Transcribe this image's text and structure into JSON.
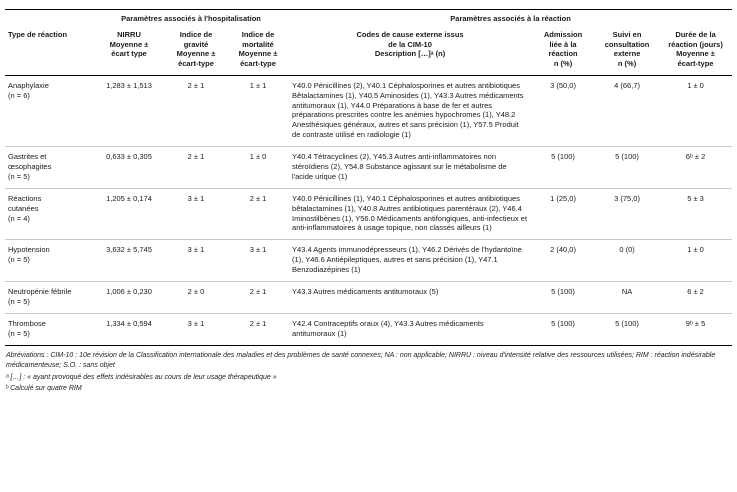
{
  "table": {
    "group_headers": [
      "Paramètres associés à l'hospitalisation",
      "Paramètres associés à la réaction"
    ],
    "columns": [
      "Type de réaction",
      "NIRRU\nMoyenne ±\nécart type",
      "Indice de\ngravité\nMoyenne ±\nécart-type",
      "Indice de\nmortalité\nMoyenne ±\nécart-type",
      "Codes de cause externe issus\nde la CIM-10\nDescription […]ᵃ (n)",
      "Admission\nliée à la\nréaction\nn (%)",
      "Suivi en\nconsultation\nexterne\nn (%)",
      "Durée de la\nréaction (jours)\nMoyenne ±\nécart-type"
    ],
    "rows": [
      {
        "type": "Anaphylaxie\n(n = 6)",
        "nirru": "1,283 ± 1,513",
        "gravite": "2 ± 1",
        "mortalite": "1 ± 1",
        "codes": "Y40.0 Pénicillines (2), Y40.1 Céphalosporines et autres antibiotiques Bêtalactamines (1), Y40.5 Aminosides (1), Y43.3 Autres médicaments antitumoraux (1), Y44.0 Préparations à base de fer et autres préparations prescrites contre les anémies hypochromes (1), Y48.2 Anesthésiques généraux, autres et sans précision (1), Y57.5 Produit de contraste utilisé en radiologie (1)",
        "admission": "3 (50,0)",
        "suivi": "4 (66,7)",
        "duree": "1 ± 0"
      },
      {
        "type": "Gastrites et\nœsophagites\n(n = 5)",
        "nirru": "0,633 ± 0,305",
        "gravite": "2 ± 1",
        "mortalite": "1 ± 0",
        "codes": "Y40.4 Tétracyclines (2), Y45.3 Autres anti-inflammatoires non stéroïdiens (2), Y54.8 Substance agissant sur le métabolisme de l'acide urique (1)",
        "admission": "5 (100)",
        "suivi": "5 (100)",
        "duree": "6ᵇ ± 2"
      },
      {
        "type": "Réactions\ncutanées\n(n = 4)",
        "nirru": "1,205 ± 0,174",
        "gravite": "3 ± 1",
        "mortalite": "2 ± 1",
        "codes": "Y40.0 Pénicillines (1), Y40.1 Céphalosporines et autres antibiotiques bêtalactamines (1), Y40.8 Autres antibiotiques parentéraux (2), Y46.4 Iminostilbènes (1), Y56.0 Médicaments antifongiques, anti-infectieux et anti-inflammatoires à usage topique, non classés ailleurs (1)",
        "admission": "1 (25,0)",
        "suivi": "3 (75,0)",
        "duree": "5 ± 3"
      },
      {
        "type": "Hypotension\n(n = 5)",
        "nirru": "3,632 ± 5,745",
        "gravite": "3 ± 1",
        "mortalite": "3 ± 1",
        "codes": "Y43.4 Agents immunodépresseurs (1), Y46.2 Dérivés de l'hydantoïne (1), Y46.6 Antiépileptiques, autres et sans précision (1), Y47.1 Benzodiazépines (1)",
        "admission": "2 (40,0)",
        "suivi": "0 (0)",
        "duree": "1 ± 0"
      },
      {
        "type": "Neutropénie fébrile\n(n = 5)",
        "nirru": "1,006 ± 0,230",
        "gravite": "2 ± 0",
        "mortalite": "2 ± 1",
        "codes": "Y43.3 Autres médicaments antitumoraux (5)",
        "admission": "5 (100)",
        "suivi": "NA",
        "duree": "6 ± 2"
      },
      {
        "type": "Thrombose\n(n = 5)",
        "nirru": "1,334 ± 0,594",
        "gravite": "3 ± 1",
        "mortalite": "2 ± 1",
        "codes": "Y42.4 Contraceptifs oraux (4), Y43.3 Autres médicaments antitumoraux (1)",
        "admission": "5 (100)",
        "suivi": "5 (100)",
        "duree": "9ᵇ ± 5"
      }
    ],
    "footnotes": [
      "Abréviations : CIM-10 : 10e révision de la Classification internationale des maladies et des problèmes de santé connexes; NA : non applicable; NIRRU : niveau d'intensité relative des ressources utilisées; RIM : réaction indésirable médicamenteuse; S.O. : sans objet",
      "ᵃ […] : « ayant provoqué des effets indésirables au cours de leur usage thérapeutique »",
      "ᵇ Calculé sur quatre RIM"
    ]
  }
}
